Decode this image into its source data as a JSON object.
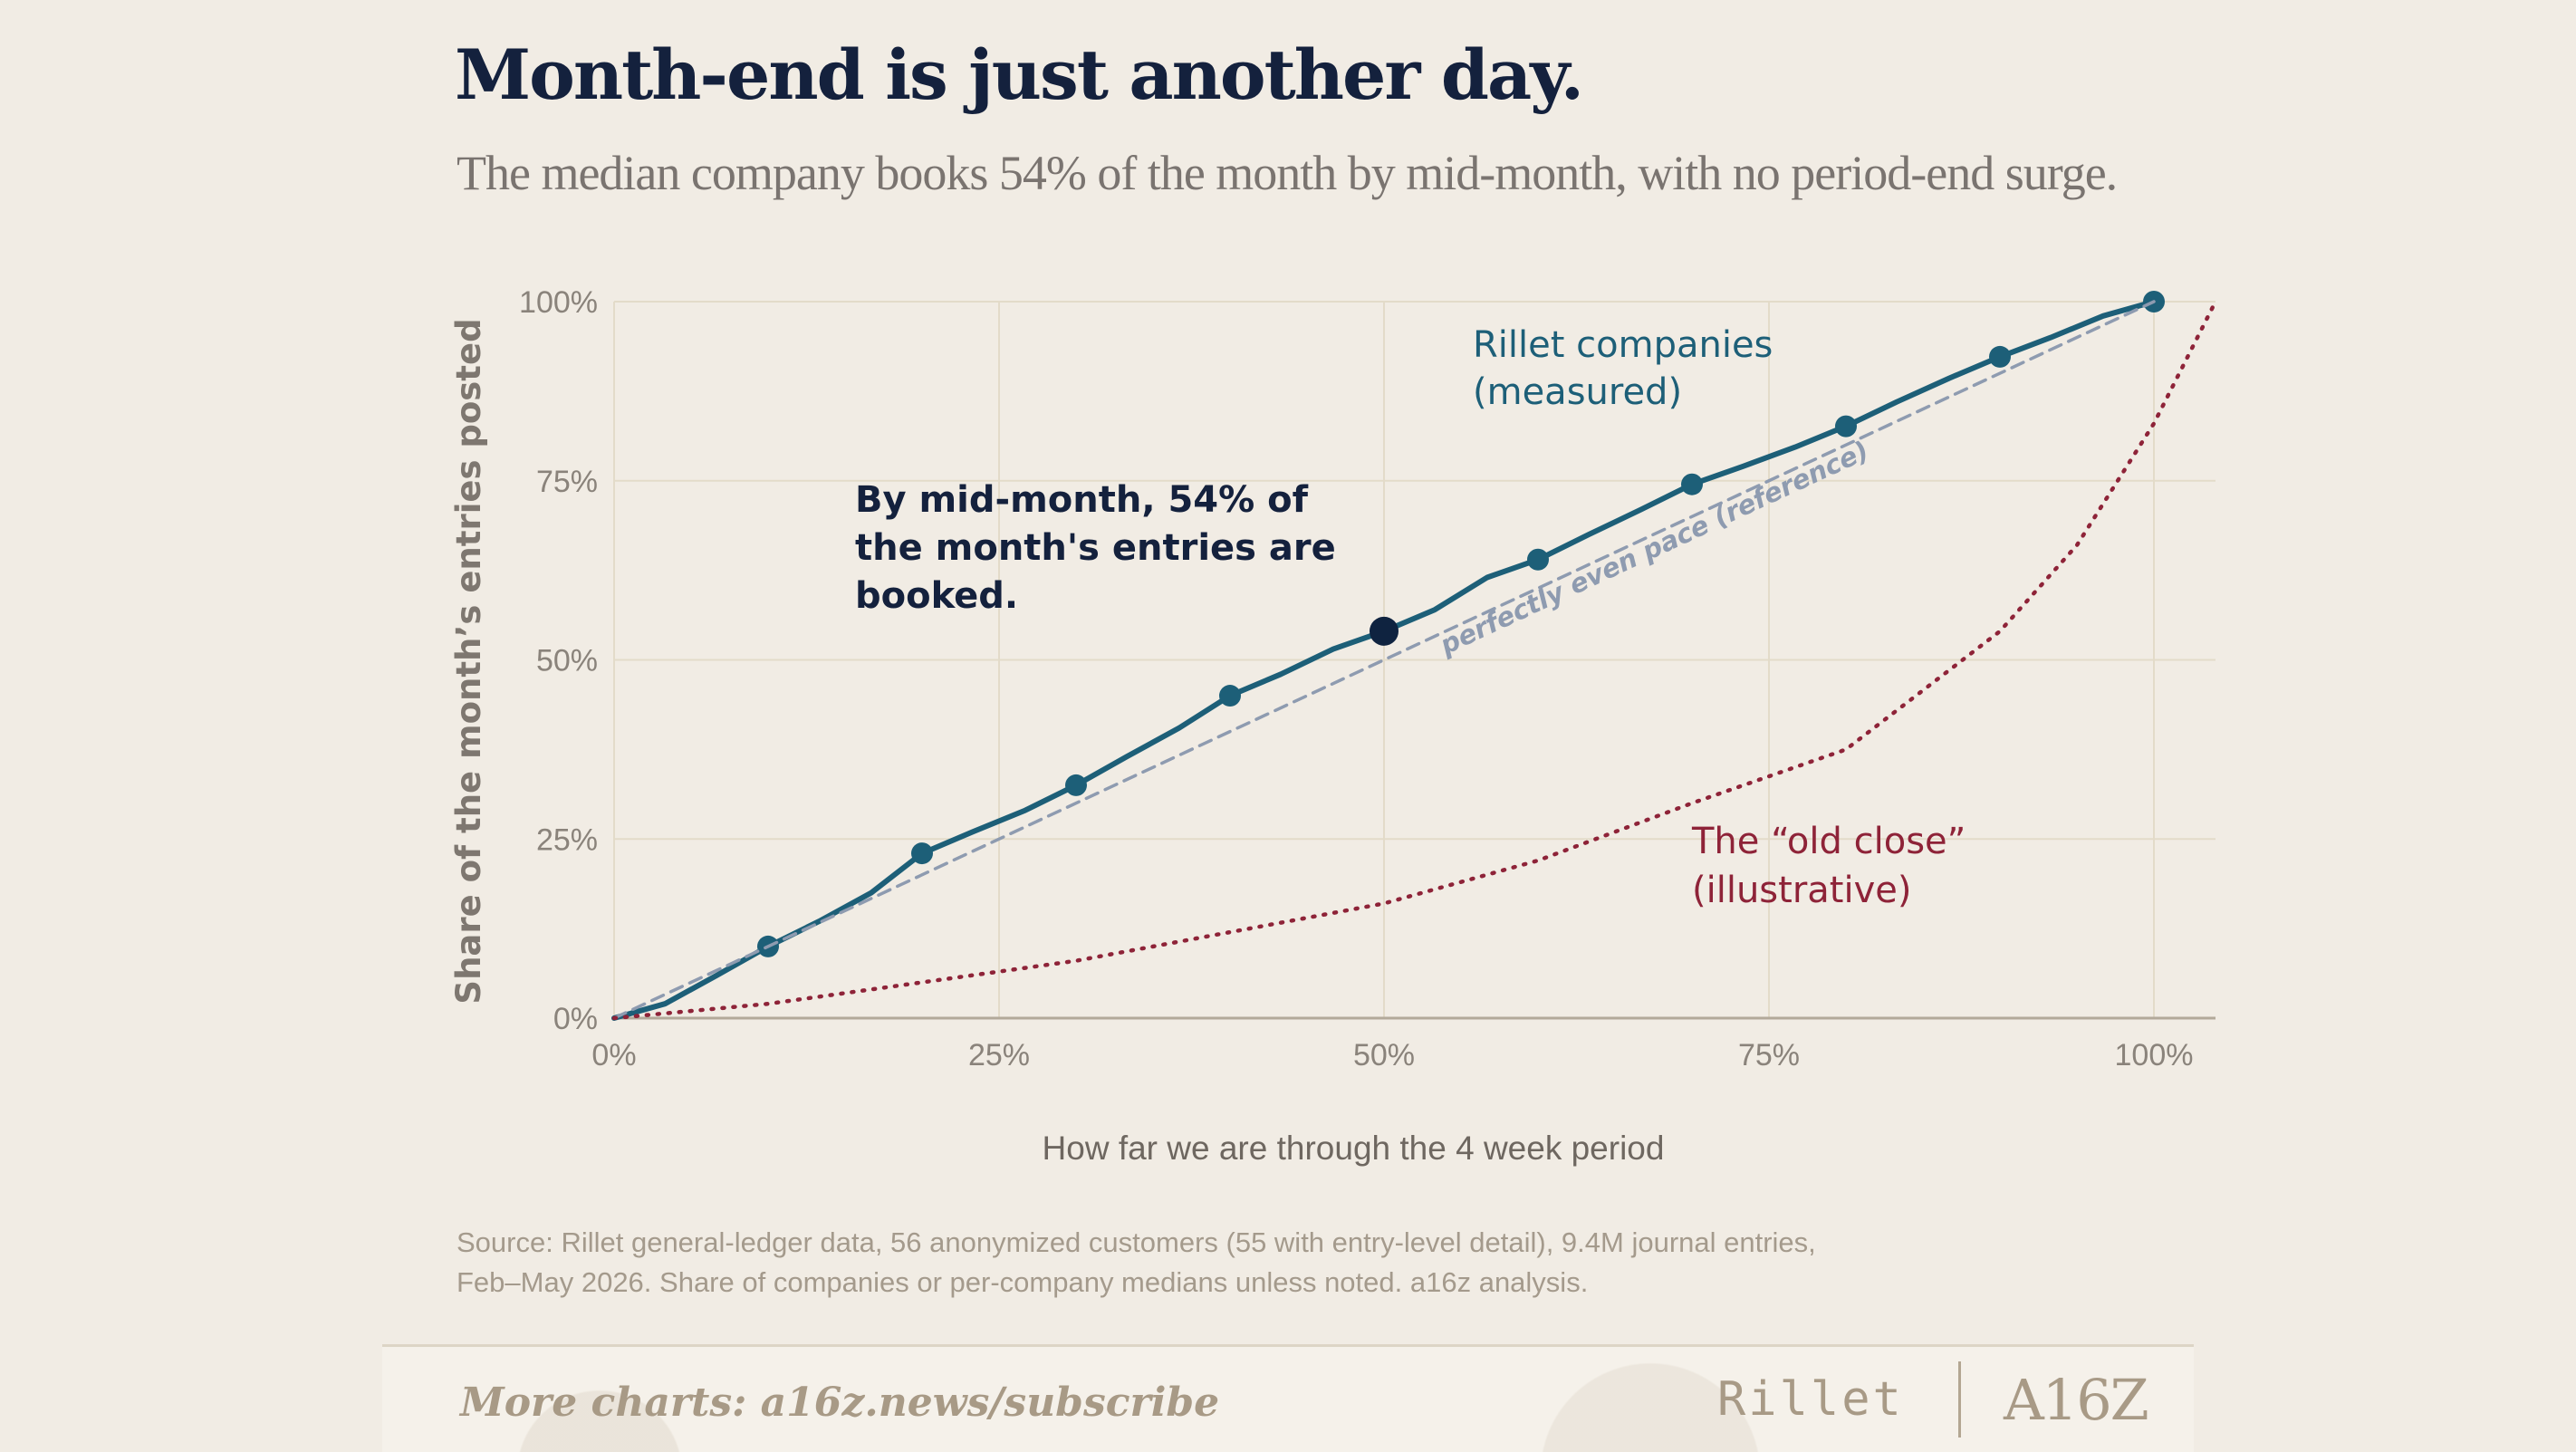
{
  "title": "Month-end is just another day.",
  "subtitle": "The median company books 54% of the month by mid-month, with no period-end surge.",
  "chart_data": {
    "type": "line",
    "xlabel": "How far we are through the 4 week period",
    "ylabel": "Share of the month’s entries posted",
    "xlim": [
      0,
      1.04
    ],
    "ylim": [
      0,
      1
    ],
    "x_ticks": [
      {
        "value": 0,
        "label": "0%"
      },
      {
        "value": 0.25,
        "label": "25%"
      },
      {
        "value": 0.5,
        "label": "50%"
      },
      {
        "value": 0.75,
        "label": "75%"
      },
      {
        "value": 1,
        "label": "100%"
      }
    ],
    "y_ticks": [
      {
        "value": 0,
        "label": "0%"
      },
      {
        "value": 0.25,
        "label": "25%"
      },
      {
        "value": 0.5,
        "label": "50%"
      },
      {
        "value": 0.75,
        "label": "75%"
      },
      {
        "value": 1,
        "label": "100%"
      }
    ],
    "grid": true,
    "series": [
      {
        "name": "Rillet companies (measured)",
        "label_lines": [
          "Rillet companies",
          "(measured)"
        ],
        "color": "#1d5f78",
        "style": "solid",
        "x": [
          0,
          0.033,
          0.067,
          0.1,
          0.133,
          0.167,
          0.2,
          0.233,
          0.267,
          0.3,
          0.333,
          0.367,
          0.4,
          0.433,
          0.467,
          0.5,
          0.533,
          0.567,
          0.6,
          0.633,
          0.667,
          0.7,
          0.733,
          0.767,
          0.8,
          0.833,
          0.867,
          0.9,
          0.933,
          0.967,
          1
        ],
        "y": [
          0,
          0.02,
          0.06,
          0.1,
          0.135,
          0.175,
          0.23,
          0.26,
          0.29,
          0.325,
          0.365,
          0.405,
          0.45,
          0.48,
          0.515,
          0.54,
          0.57,
          0.615,
          0.64,
          0.675,
          0.71,
          0.745,
          0.77,
          0.797,
          0.826,
          0.86,
          0.893,
          0.923,
          0.95,
          0.98,
          1.0
        ],
        "markers_x": [
          0.1,
          0.2,
          0.3,
          0.4,
          0.6,
          0.7,
          0.8,
          0.9,
          1
        ],
        "markers_y": [
          0.1,
          0.23,
          0.325,
          0.45,
          0.64,
          0.745,
          0.826,
          0.923,
          1.0
        ]
      },
      {
        "name": "perfectly even pace (reference)",
        "color": "#8e9bb0",
        "style": "dashed",
        "x": [
          0,
          1
        ],
        "y": [
          0,
          1
        ]
      },
      {
        "name": "The “old close” (illustrative)",
        "label_lines": [
          "The “old close”",
          "(illustrative)"
        ],
        "color": "#8e2338",
        "style": "dotted",
        "x": [
          0,
          0.1,
          0.2,
          0.3,
          0.4,
          0.5,
          0.6,
          0.7,
          0.8,
          0.9,
          0.95,
          1,
          1.04
        ],
        "y": [
          0,
          0.02,
          0.05,
          0.08,
          0.12,
          0.16,
          0.22,
          0.3,
          0.375,
          0.54,
          0.66,
          0.83,
          1.0
        ]
      }
    ],
    "highlight_point": {
      "x": 0.5,
      "y": 0.54
    },
    "annotation_lines": [
      "By mid-month, 54% of",
      "the month's entries are",
      "booked."
    ]
  },
  "source_line1": "Source: Rillet general-ledger data, 56 anonymized customers (55 with entry-level detail), 9.4M journal entries,",
  "source_line2": "Feb–May 2026. Share of companies or per-company medians unless noted. a16z analysis.",
  "footer": {
    "link_text": "More charts: a16z.news/subscribe",
    "brand1": "Rillet",
    "brand2": "A16Z"
  },
  "colors": {
    "background": "#f1ece4",
    "grid": "#e3dbc9",
    "axis": "#b3a99a",
    "annotation": "#14213d"
  }
}
